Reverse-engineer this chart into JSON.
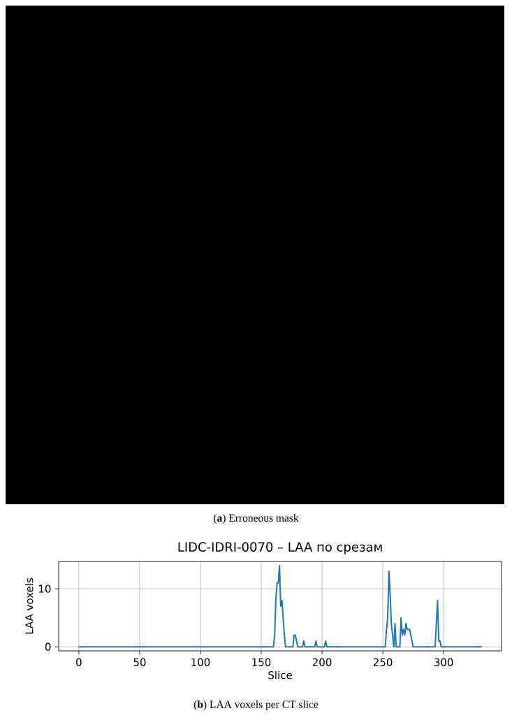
{
  "chart_data": {
    "type": "line",
    "title": "LIDC-IDRI-0070 – LAA по срезам",
    "xlabel": "Slice",
    "ylabel": "LAA voxels",
    "x": [
      0,
      160,
      161,
      162,
      163,
      164,
      165,
      166,
      167,
      168,
      169,
      170,
      176,
      177,
      178,
      179,
      180,
      184,
      185,
      186,
      194,
      195,
      196,
      202,
      203,
      204,
      252,
      253,
      254,
      255,
      256,
      257,
      258,
      259,
      260,
      261,
      264,
      265,
      266,
      267,
      268,
      269,
      270,
      271,
      272,
      273,
      274,
      275,
      293,
      294,
      295,
      296,
      297,
      298,
      331
    ],
    "values": [
      0,
      0,
      2,
      8,
      11,
      11,
      14,
      7,
      8,
      5,
      2,
      0,
      0,
      2,
      2,
      1,
      0,
      0,
      1,
      0,
      0,
      1,
      0,
      0,
      1,
      0,
      0,
      3,
      5,
      13,
      9,
      4,
      2,
      0,
      4,
      0,
      0,
      5,
      2,
      3,
      2,
      4,
      3,
      3,
      3,
      2,
      1,
      0,
      0,
      4,
      8,
      1,
      1,
      0,
      0
    ],
    "color": "#1f77b4",
    "xlim": [
      -16.6,
      347.6
    ],
    "ylim": [
      -0.7,
      14.7
    ],
    "xticks": [
      0,
      50,
      100,
      150,
      200,
      250,
      300
    ],
    "yticks": [
      0,
      10
    ],
    "grid": true,
    "annotations": [
      "(**a**) Erroneous mask",
      "(**b**) LAA voxels per CT slice"
    ]
  }
}
